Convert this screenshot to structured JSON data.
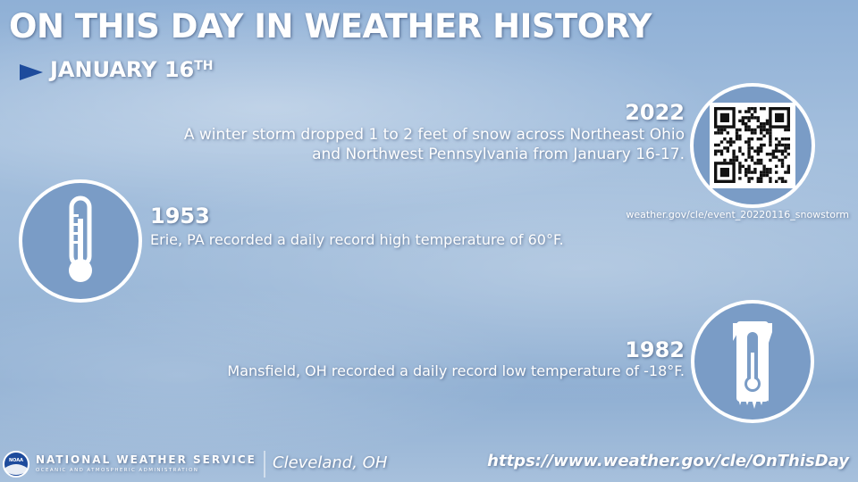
{
  "header": {
    "title": "ON THIS DAY IN WEATHER HISTORY",
    "date": "JANUARY 16",
    "date_suffix": "TH"
  },
  "events": [
    {
      "year": "2022",
      "text_lines": [
        "A winter storm dropped 1 to 2 feet of snow across Northeast Ohio",
        "and Northwest Pennsylvania from January 16-17."
      ],
      "link": "weather.gov/cle/event_20220116_snowstorm"
    },
    {
      "year": "1953",
      "text": "Erie, PA recorded a daily record high temperature of 60°F."
    },
    {
      "year": "1982",
      "text": "Mansfield, OH recorded a daily record low temperature of -18°F."
    }
  ],
  "footer": {
    "logo_text": "NOAA",
    "agency": "NATIONAL WEATHER SERVICE",
    "subagency": "OCEANIC AND ATMOSPHERIC ADMINISTRATION",
    "office": "Cleveland, OH",
    "url": "https://www.weather.gov/cle/OnThisDay"
  }
}
